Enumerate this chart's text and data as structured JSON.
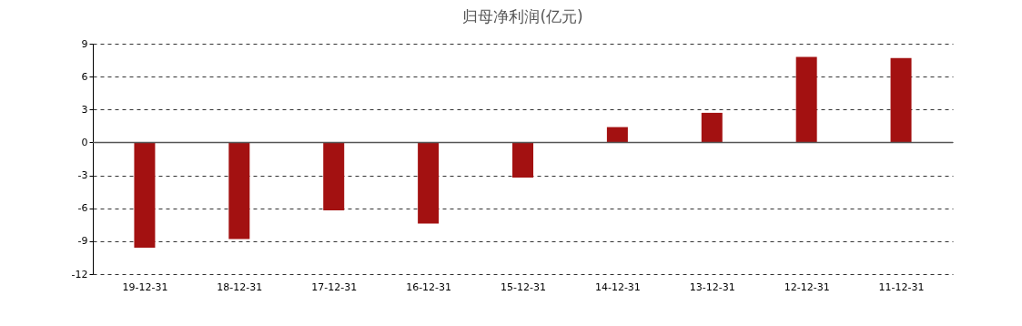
{
  "chart_data": {
    "type": "bar",
    "title": "归母净利润(亿元)",
    "categories": [
      "19-12-31",
      "18-12-31",
      "17-12-31",
      "16-12-31",
      "15-12-31",
      "14-12-31",
      "13-12-31",
      "12-12-31",
      "11-12-31"
    ],
    "series": [
      {
        "color": "#a31111",
        "values": [
          -9.6,
          -8.8,
          -6.2,
          -7.4,
          -3.2,
          1.4,
          2.7,
          7.8,
          7.7
        ]
      }
    ],
    "ylim": [
      -12,
      9
    ],
    "yticks": [
      -12,
      -9,
      -6,
      -3,
      0,
      3,
      6,
      9
    ],
    "grid": "y",
    "ref_lines": [
      {
        "axis": "y",
        "value": 0,
        "color": "#555555"
      }
    ]
  }
}
